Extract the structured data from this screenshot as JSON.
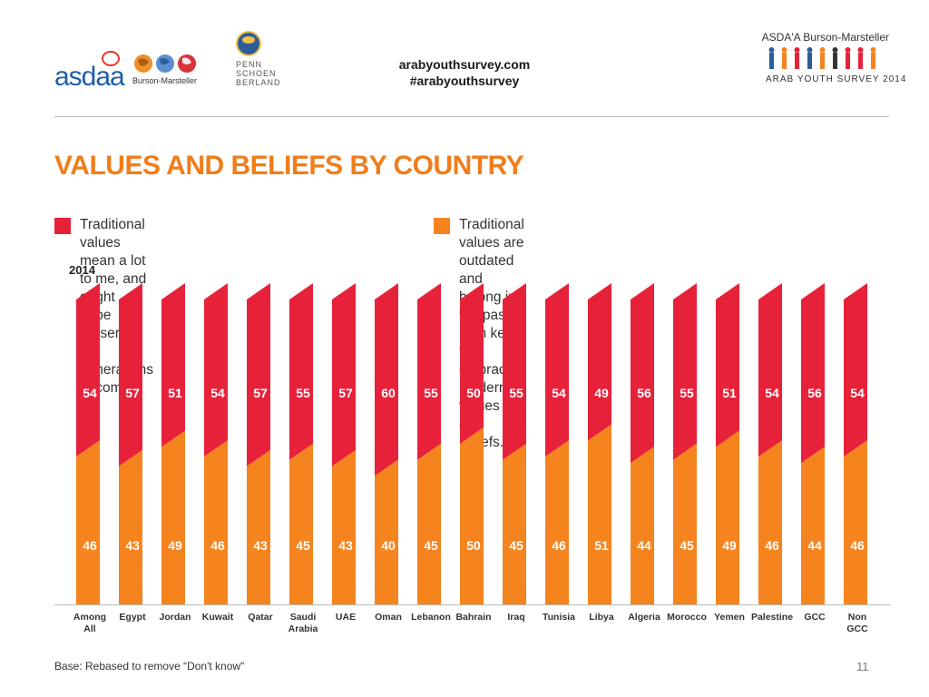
{
  "header": {
    "asdaa_logo_text": "asdaa",
    "bm_logo_text": "Burson-Marsteller",
    "psb_logo_lines": [
      "PENN",
      "SCHOEN",
      "BERLAND"
    ],
    "site_url": "arabyouthsurvey.com",
    "hashtag": "#arabyouthsurvey",
    "right_logo_top": "ASDA'A Burson-Marsteller",
    "right_logo_bottom": "ARAB YOUTH SURVEY 2014"
  },
  "title": "VALUES AND BELIEFS BY COUNTRY",
  "legend": {
    "traditional": "Traditional values mean a lot to me, and ought\nto be preserved for generations to come.",
    "modern": "Traditional values are outdated and belong in the past.\nI am keen to embrace modern values and beliefs."
  },
  "year_label": "2014",
  "colors": {
    "traditional": "#e8213a",
    "modern": "#f5841f",
    "title": "#f07d1a"
  },
  "chart_data": {
    "type": "bar",
    "stacked": true,
    "categories": [
      "Among All",
      "Egypt",
      "Jordan",
      "Kuwait",
      "Qatar",
      "Saudi Arabia",
      "UAE",
      "Oman",
      "Lebanon",
      "Bahrain",
      "Iraq",
      "Tunisia",
      "Libya",
      "Algeria",
      "Morocco",
      "Yemen",
      "Palestine",
      "GCC",
      "Non GCC"
    ],
    "series": [
      {
        "name": "Traditional values mean a lot to me, and ought to be preserved for generations to come.",
        "values": [
          54,
          57,
          51,
          54,
          57,
          55,
          57,
          60,
          55,
          50,
          55,
          54,
          49,
          56,
          55,
          51,
          54,
          56,
          54
        ]
      },
      {
        "name": "Traditional values are outdated and belong in the past. I am keen to embrace modern values and beliefs.",
        "values": [
          46,
          43,
          49,
          46,
          43,
          45,
          43,
          40,
          45,
          50,
          45,
          46,
          51,
          44,
          45,
          49,
          46,
          44,
          46
        ]
      }
    ],
    "ylim": [
      0,
      100
    ],
    "grid": false,
    "legend_position": "top",
    "title": "VALUES AND BELIEFS BY COUNTRY"
  },
  "footnote": "Base: Rebased to remove “Don't know\"",
  "page_number": "11"
}
